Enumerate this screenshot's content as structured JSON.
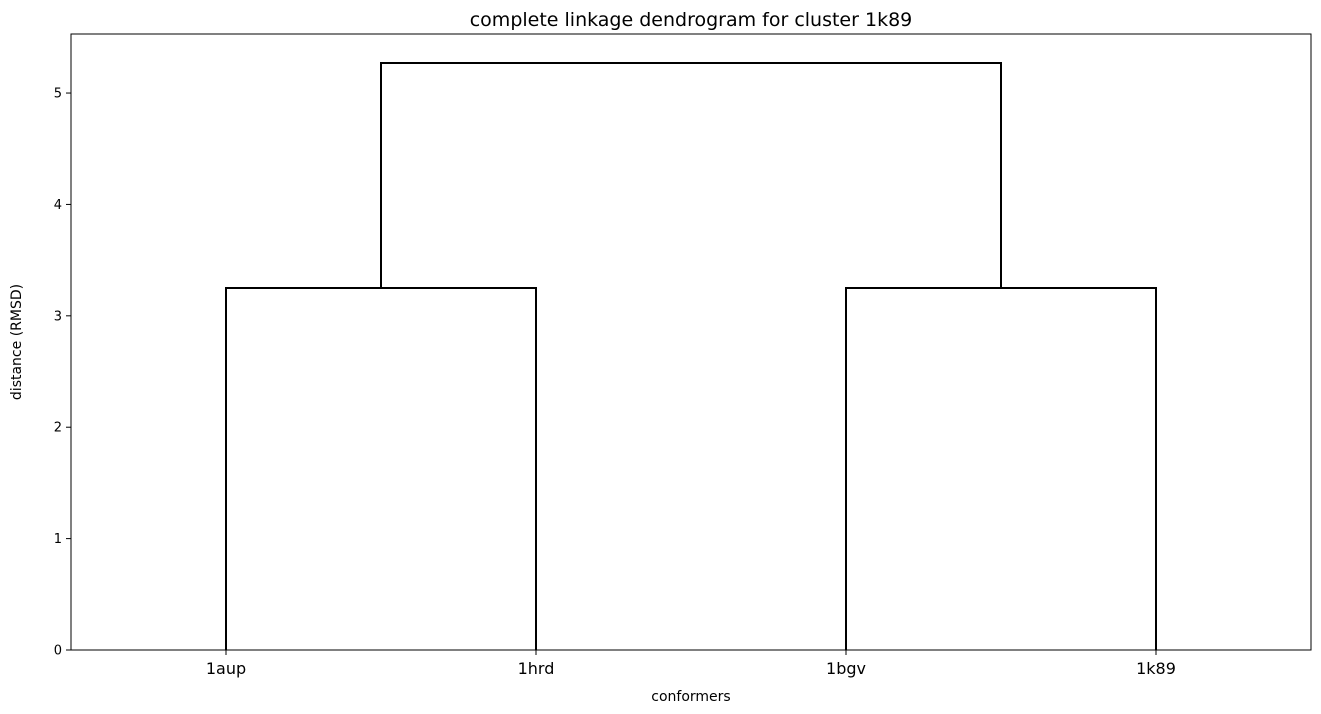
{
  "chart_data": {
    "type": "dendrogram",
    "title": "complete linkage dendrogram for cluster 1k89",
    "xlabel": "conformers",
    "ylabel": "distance (RMSD)",
    "leaves": [
      "1aup",
      "1hrd",
      "1bgv",
      "1k89"
    ],
    "merges": [
      {
        "left": "1aup",
        "right": "1hrd",
        "height": 3.25
      },
      {
        "left": "1bgv",
        "right": "1k89",
        "height": 3.25
      },
      {
        "left": "1aup+1hrd",
        "right": "1bgv+1k89",
        "height": 5.27
      }
    ],
    "ylim": [
      0,
      5.53
    ],
    "yticks": [
      0,
      1,
      2,
      3,
      4,
      5
    ],
    "grid": false,
    "link_color": "#000000"
  }
}
